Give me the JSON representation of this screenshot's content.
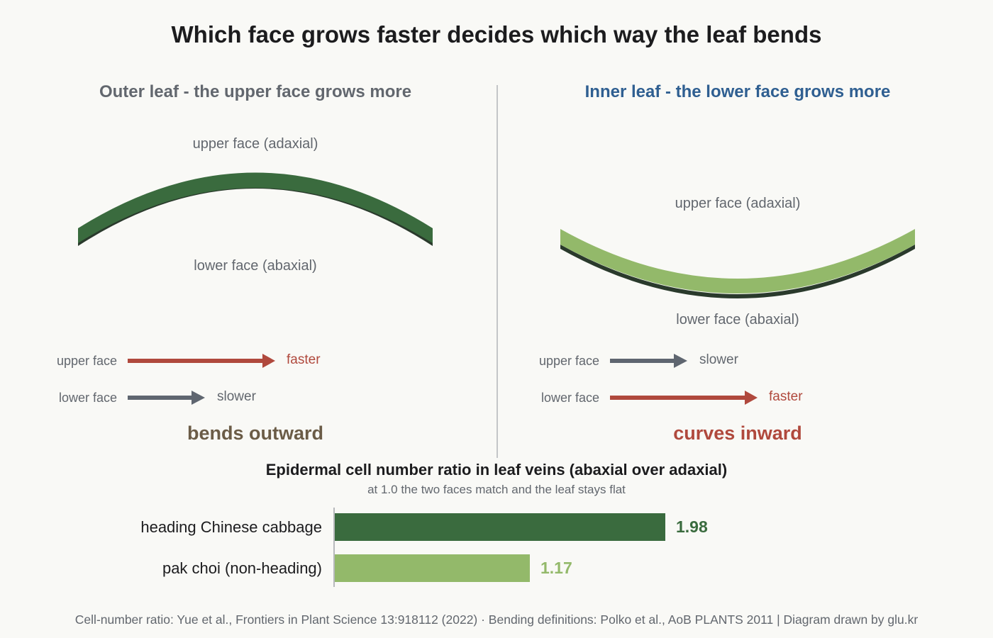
{
  "title": "Which face grows faster decides which way the leaf bends",
  "colors": {
    "dark_green": "#3a6b3e",
    "light_green": "#93b96a",
    "faster_red": "#b0493d",
    "slower_gray": "#5f6670",
    "verdict_brown": "#6b5c47",
    "inner_title_blue": "#2f5f91",
    "outer_title_gray": "#62676e"
  },
  "outer": {
    "title": "Outer leaf - the upper face grows more",
    "upper_label": "upper face (adaxial)",
    "lower_label": "lower face (abaxial)",
    "rows": [
      {
        "label": "upper face",
        "word": "faster",
        "kind": "faster"
      },
      {
        "label": "lower face",
        "word": "slower",
        "kind": "slower"
      }
    ],
    "verdict": "bends outward"
  },
  "inner": {
    "title": "Inner leaf - the lower face grows more",
    "upper_label": "upper face (adaxial)",
    "lower_label": "lower face (abaxial)",
    "rows": [
      {
        "label": "upper face",
        "word": "slower",
        "kind": "slower"
      },
      {
        "label": "lower face",
        "word": "faster",
        "kind": "faster"
      }
    ],
    "verdict": "curves inward"
  },
  "chart_data": {
    "type": "bar",
    "orientation": "horizontal",
    "title": "Epidermal cell number ratio in leaf veins (abaxial over adaxial)",
    "subtitle": "at 1.0 the two faces match and the leaf stays flat",
    "categories": [
      "heading Chinese cabbage",
      "pak choi (non-heading)"
    ],
    "values": [
      1.98,
      1.17
    ],
    "value_labels": [
      "1.98",
      "1.17"
    ],
    "colors": [
      "#3a6b3e",
      "#93b96a"
    ],
    "xlim": [
      0,
      2.2
    ],
    "grid": false
  },
  "footer": "Cell-number ratio: Yue et al., Frontiers in Plant Science 13:918112 (2022) · Bending definitions: Polko et al., AoB PLANTS 2011  |  Diagram drawn by glu.kr"
}
